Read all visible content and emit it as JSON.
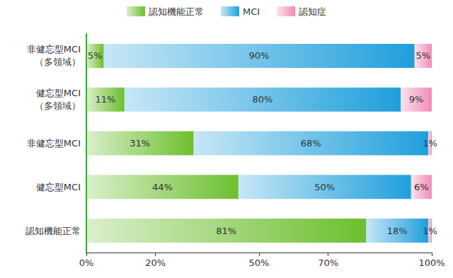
{
  "chart_data": {
    "type": "bar",
    "orientation": "horizontal",
    "stacked": true,
    "data_labels": true,
    "grid": false,
    "legend": "top",
    "categories": [
      "非健忘型MCI\n（多領域）",
      "健忘型MCI\n（多領域）",
      "非健忘型MCI",
      "健忘型MCI",
      "認知機能正常"
    ],
    "series": [
      {
        "name": "認知機能正常",
        "color": "#6cbf2e",
        "values": [
          5,
          11,
          31,
          44,
          81
        ],
        "value_labels": [
          "5%",
          "11%",
          "31%",
          "44%",
          "81%"
        ]
      },
      {
        "name": "MCI",
        "color": "#1f9fdc",
        "values": [
          90,
          80,
          68,
          50,
          18
        ],
        "value_labels": [
          "90%",
          "80%",
          "68%",
          "50%",
          "18%"
        ]
      },
      {
        "name": "認知症",
        "color": "#f08cb6",
        "values": [
          5,
          9,
          1,
          6,
          1
        ],
        "value_labels": [
          "5%",
          "9%",
          "1%",
          "6%",
          "1%"
        ]
      }
    ],
    "xlim": [
      0,
      100
    ],
    "xticks": [
      {
        "value": 0,
        "label": "0%"
      },
      {
        "value": 20,
        "label": "20%"
      },
      {
        "value": 50,
        "label": "50%"
      },
      {
        "value": 70,
        "label": "70%"
      },
      {
        "value": 100,
        "label": "100%"
      }
    ]
  }
}
